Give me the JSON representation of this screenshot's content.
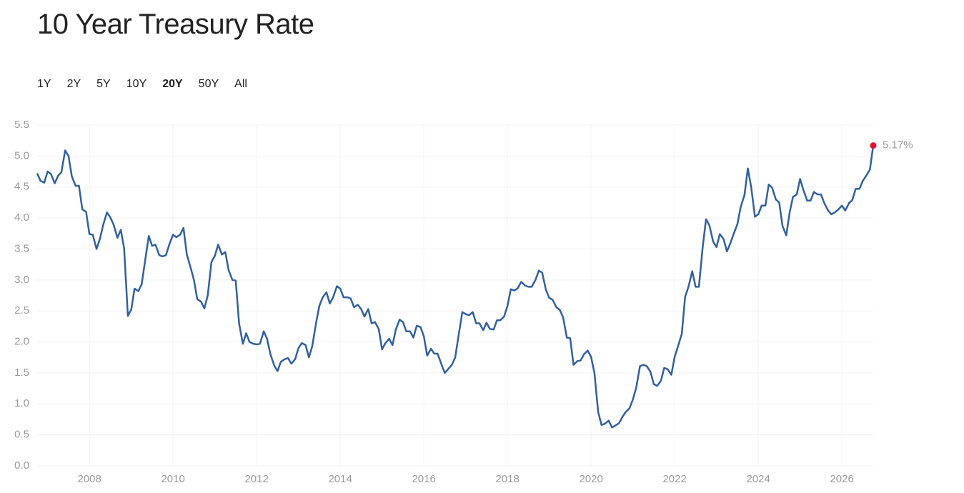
{
  "chart_data": {
    "type": "line",
    "title": "10 Year Treasury Rate",
    "ranges": [
      "1Y",
      "2Y",
      "5Y",
      "10Y",
      "20Y",
      "50Y",
      "All"
    ],
    "selected_range": 4,
    "color": "#32609e",
    "end_marker_color": "#e8102e",
    "end_label": "5.17%",
    "grid": true,
    "xlim": [
      2006.75,
      2026.75
    ],
    "xticks": [
      2008,
      2010,
      2012,
      2014,
      2016,
      2018,
      2020,
      2022,
      2024,
      2026
    ],
    "ylim": [
      0,
      5.5
    ],
    "yticks": [
      {
        "value": 0,
        "label": "0.0"
      },
      0.5,
      {
        "value": 1,
        "label": "1.0"
      },
      1.5,
      {
        "value": 2,
        "label": "2.0"
      },
      2.5,
      {
        "value": 3,
        "label": "3.0"
      },
      3.5,
      {
        "value": 4,
        "label": "4.0"
      },
      4.5,
      {
        "value": 5,
        "label": "5.0"
      },
      5.5
    ],
    "x": [
      2006.75,
      2006.83,
      2006.92,
      2007.0,
      2007.08,
      2007.17,
      2007.25,
      2007.33,
      2007.42,
      2007.5,
      2007.58,
      2007.67,
      2007.75,
      2007.83,
      2007.92,
      2008.0,
      2008.08,
      2008.17,
      2008.25,
      2008.33,
      2008.42,
      2008.5,
      2008.58,
      2008.67,
      2008.75,
      2008.83,
      2008.92,
      2009.0,
      2009.08,
      2009.17,
      2009.25,
      2009.33,
      2009.42,
      2009.5,
      2009.58,
      2009.67,
      2009.75,
      2009.83,
      2009.92,
      2010.0,
      2010.08,
      2010.17,
      2010.25,
      2010.33,
      2010.42,
      2010.5,
      2010.58,
      2010.67,
      2010.75,
      2010.83,
      2010.92,
      2011.0,
      2011.08,
      2011.17,
      2011.25,
      2011.33,
      2011.42,
      2011.5,
      2011.58,
      2011.67,
      2011.75,
      2011.83,
      2011.92,
      2012.0,
      2012.08,
      2012.17,
      2012.25,
      2012.33,
      2012.42,
      2012.5,
      2012.58,
      2012.67,
      2012.75,
      2012.83,
      2012.92,
      2013.0,
      2013.08,
      2013.17,
      2013.25,
      2013.33,
      2013.42,
      2013.5,
      2013.58,
      2013.67,
      2013.75,
      2013.83,
      2013.92,
      2014.0,
      2014.08,
      2014.17,
      2014.25,
      2014.33,
      2014.42,
      2014.5,
      2014.58,
      2014.67,
      2014.75,
      2014.83,
      2014.92,
      2015.0,
      2015.08,
      2015.17,
      2015.25,
      2015.33,
      2015.42,
      2015.5,
      2015.58,
      2015.67,
      2015.75,
      2015.83,
      2015.92,
      2016.0,
      2016.08,
      2016.17,
      2016.25,
      2016.33,
      2016.42,
      2016.5,
      2016.58,
      2016.67,
      2016.75,
      2016.83,
      2016.92,
      2017.0,
      2017.08,
      2017.17,
      2017.25,
      2017.33,
      2017.42,
      2017.5,
      2017.58,
      2017.67,
      2017.75,
      2017.83,
      2017.92,
      2018.0,
      2018.08,
      2018.17,
      2018.25,
      2018.33,
      2018.42,
      2018.5,
      2018.58,
      2018.67,
      2018.75,
      2018.83,
      2018.92,
      2019.0,
      2019.08,
      2019.17,
      2019.25,
      2019.33,
      2019.42,
      2019.5,
      2019.58,
      2019.67,
      2019.75,
      2019.83,
      2019.92,
      2020.0,
      2020.08,
      2020.17,
      2020.25,
      2020.33,
      2020.42,
      2020.5,
      2020.58,
      2020.67,
      2020.75,
      2020.83,
      2020.92,
      2021.0,
      2021.08,
      2021.17,
      2021.25,
      2021.33,
      2021.42,
      2021.5,
      2021.58,
      2021.67,
      2021.75,
      2021.83,
      2021.92,
      2022.0,
      2022.08,
      2022.17,
      2022.25,
      2022.33,
      2022.42,
      2022.5,
      2022.58,
      2022.67,
      2022.75,
      2022.83,
      2022.92,
      2023.0,
      2023.08,
      2023.17,
      2023.25,
      2023.33,
      2023.42,
      2023.5,
      2023.58,
      2023.67,
      2023.75,
      2023.83,
      2023.92,
      2024.0,
      2024.08,
      2024.17,
      2024.25,
      2024.33,
      2024.42,
      2024.5,
      2024.58,
      2024.67,
      2024.75,
      2024.83,
      2024.92,
      2025.0,
      2025.08,
      2025.17,
      2025.25,
      2025.33,
      2025.42,
      2025.5,
      2025.58,
      2025.67,
      2025.75,
      2025.83,
      2025.92,
      2026.0,
      2026.08,
      2026.17,
      2026.25,
      2026.33,
      2026.42,
      2026.5,
      2026.58,
      2026.67,
      2026.75
    ],
    "values": [
      4.72,
      4.6,
      4.57,
      4.75,
      4.71,
      4.56,
      4.68,
      4.74,
      5.09,
      5.0,
      4.67,
      4.52,
      4.52,
      4.14,
      4.1,
      3.74,
      3.73,
      3.5,
      3.66,
      3.89,
      4.09,
      4.01,
      3.89,
      3.68,
      3.81,
      3.51,
      2.42,
      2.52,
      2.86,
      2.82,
      2.93,
      3.3,
      3.71,
      3.55,
      3.57,
      3.4,
      3.38,
      3.4,
      3.59,
      3.73,
      3.69,
      3.73,
      3.84,
      3.41,
      3.2,
      3.0,
      2.69,
      2.65,
      2.54,
      2.75,
      3.29,
      3.39,
      3.57,
      3.41,
      3.45,
      3.16,
      3.0,
      2.99,
      2.3,
      1.97,
      2.14,
      2.0,
      1.97,
      1.96,
      1.97,
      2.17,
      2.05,
      1.8,
      1.62,
      1.53,
      1.68,
      1.72,
      1.74,
      1.65,
      1.72,
      1.9,
      1.98,
      1.95,
      1.75,
      1.93,
      2.3,
      2.58,
      2.72,
      2.8,
      2.62,
      2.72,
      2.9,
      2.86,
      2.72,
      2.72,
      2.7,
      2.56,
      2.6,
      2.53,
      2.41,
      2.53,
      2.3,
      2.32,
      2.21,
      1.88,
      1.98,
      2.05,
      1.95,
      2.2,
      2.36,
      2.32,
      2.17,
      2.17,
      2.07,
      2.26,
      2.24,
      2.09,
      1.78,
      1.89,
      1.81,
      1.81,
      1.64,
      1.5,
      1.56,
      1.63,
      1.75,
      2.1,
      2.48,
      2.45,
      2.43,
      2.48,
      2.3,
      2.3,
      2.19,
      2.31,
      2.21,
      2.2,
      2.35,
      2.35,
      2.41,
      2.58,
      2.85,
      2.83,
      2.87,
      2.97,
      2.91,
      2.89,
      2.89,
      3.0,
      3.15,
      3.12,
      2.84,
      2.71,
      2.68,
      2.56,
      2.52,
      2.4,
      2.07,
      2.06,
      1.63,
      1.69,
      1.7,
      1.8,
      1.86,
      1.76,
      1.5,
      0.87,
      0.66,
      0.68,
      0.73,
      0.62,
      0.65,
      0.69,
      0.79,
      0.87,
      0.93,
      1.07,
      1.26,
      1.61,
      1.63,
      1.61,
      1.52,
      1.32,
      1.29,
      1.37,
      1.58,
      1.56,
      1.47,
      1.76,
      1.93,
      2.13,
      2.73,
      2.89,
      3.14,
      2.89,
      2.89,
      3.53,
      3.98,
      3.88,
      3.62,
      3.53,
      3.74,
      3.66,
      3.46,
      3.59,
      3.76,
      3.9,
      4.18,
      4.37,
      4.8,
      4.5,
      4.02,
      4.06,
      4.2,
      4.2,
      4.54,
      4.49,
      4.3,
      4.25,
      3.87,
      3.72,
      4.09,
      4.34,
      4.38,
      4.63,
      4.45,
      4.28,
      4.28,
      4.42,
      4.38,
      4.38,
      4.24,
      4.12,
      4.06,
      4.09,
      4.14,
      4.2,
      4.12,
      4.24,
      4.29,
      4.47,
      4.47,
      4.6,
      4.68,
      4.78,
      5.17
    ]
  }
}
